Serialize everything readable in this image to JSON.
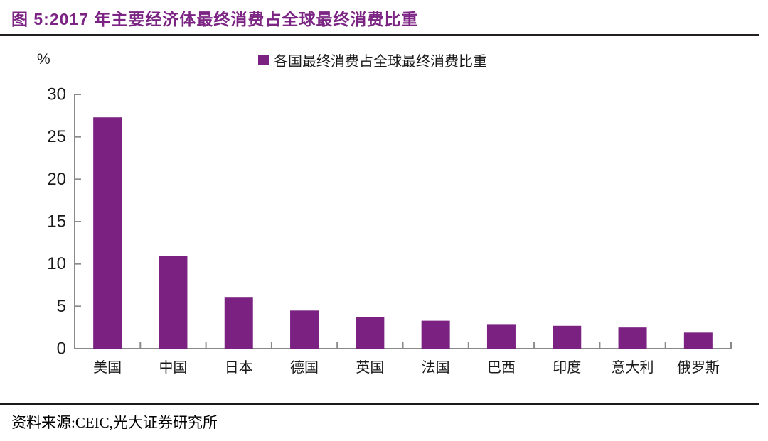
{
  "figure": {
    "title": "图 5:2017 年主要经济体最终消费占全球最终消费比重",
    "source": "资料来源:CEIC,光大证券研究所"
  },
  "legend": {
    "label": "各国最终消费占全球最终消费比重"
  },
  "colors": {
    "accent_purple": "#7B2182",
    "title_purple": "#7B2483",
    "axis_gray": "#8A8A8A",
    "text_black": "#1A1A1A",
    "rule_black": "#231F20"
  },
  "chart_data": {
    "type": "bar",
    "title": "2017 年主要经济体最终消费占全球最终消费比重",
    "categories": [
      "美国",
      "中国",
      "日本",
      "德国",
      "英国",
      "法国",
      "巴西",
      "印度",
      "意大利",
      "俄罗斯"
    ],
    "values": [
      27.3,
      10.9,
      6.1,
      4.5,
      3.7,
      3.3,
      2.9,
      2.7,
      2.5,
      1.9
    ],
    "series_name": "各国最终消费占全球最终消费比重",
    "xlabel": "",
    "ylabel": "%",
    "ylim": [
      0,
      30
    ],
    "yticks": [
      0,
      5,
      10,
      15,
      20,
      25,
      30
    ],
    "grid": false,
    "legend_position": "top-center",
    "bar_color": "#7B2182"
  }
}
